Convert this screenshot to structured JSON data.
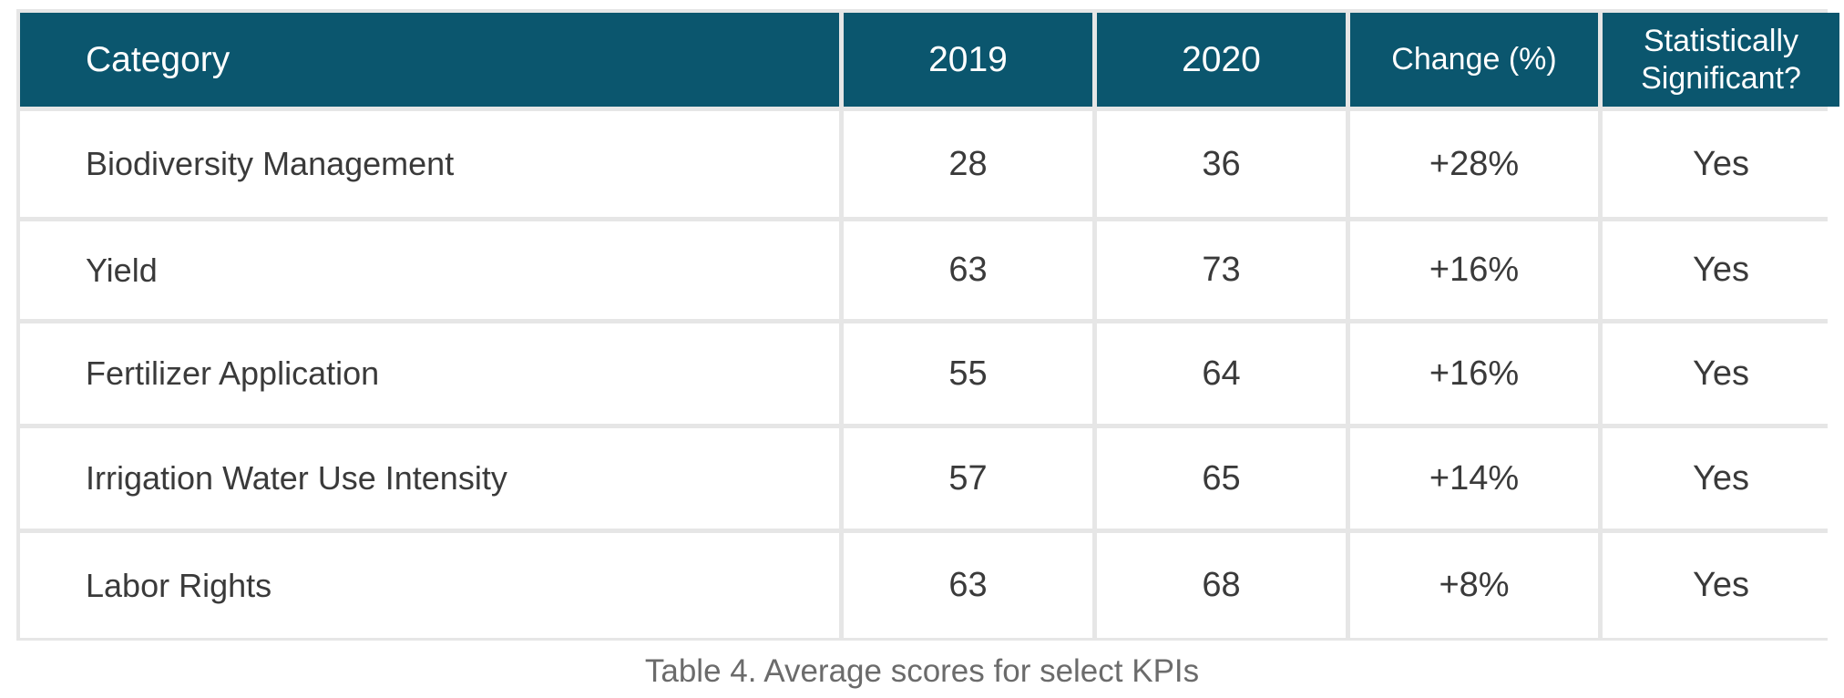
{
  "table": {
    "headers": [
      "Category",
      "2019",
      "2020",
      "Change (%)",
      "Statistically Significant?"
    ],
    "rows": [
      [
        "Biodiversity Management",
        "28",
        "36",
        "+28%",
        "Yes"
      ],
      [
        "Yield",
        "63",
        "73",
        "+16%",
        "Yes"
      ],
      [
        "Fertilizer Application",
        "55",
        "64",
        "+16%",
        "Yes"
      ],
      [
        "Irrigation Water Use Intensity",
        "57",
        "65",
        "+14%",
        "Yes"
      ],
      [
        "Labor Rights",
        "63",
        "68",
        "+8%",
        "Yes"
      ]
    ]
  },
  "caption": "Table 4. Average scores for select KPIs",
  "colors": {
    "header_bg": "#0b566e",
    "grid_lines": "#e6e6e6",
    "text": "#3a3a3a",
    "caption": "#6b6b6b"
  }
}
